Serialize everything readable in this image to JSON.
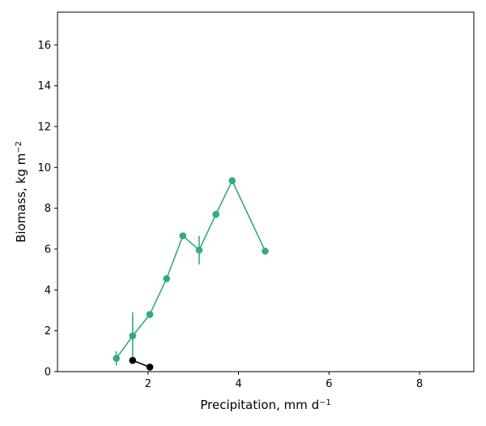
{
  "chart_data": {
    "type": "line",
    "title": "",
    "xlabel": "Precipitation,  mm d",
    "xlabel_sup": "−1",
    "ylabel": "Biomass,  kg m",
    "ylabel_sup": "−2",
    "xlim": [
      0.0,
      9.2
    ],
    "ylim": [
      0,
      17.6
    ],
    "xticks": [
      2,
      4,
      6,
      8
    ],
    "yticks": [
      0,
      2,
      4,
      6,
      8,
      10,
      12,
      14,
      16
    ],
    "grid": false,
    "legend": false,
    "series": [
      {
        "color": "#33a985",
        "marker": "circle",
        "points": [
          {
            "x": 1.3,
            "y": 0.65,
            "err": [
              0.35,
              0.35
            ]
          },
          {
            "x": 1.66,
            "y": 1.75,
            "err": [
              1.15,
              1.15
            ]
          },
          {
            "x": 2.04,
            "y": 2.8
          },
          {
            "x": 2.41,
            "y": 4.55
          },
          {
            "x": 2.77,
            "y": 6.65
          },
          {
            "x": 3.13,
            "y": 5.95,
            "err": [
              0.7,
              0.7
            ]
          },
          {
            "x": 3.5,
            "y": 7.7
          },
          {
            "x": 3.86,
            "y": 9.35
          },
          {
            "x": 4.59,
            "y": 5.9
          }
        ]
      },
      {
        "color": "#000000",
        "marker": "circle",
        "points": [
          {
            "x": 1.66,
            "y": 0.55
          },
          {
            "x": 2.04,
            "y": 0.22
          }
        ]
      }
    ]
  }
}
